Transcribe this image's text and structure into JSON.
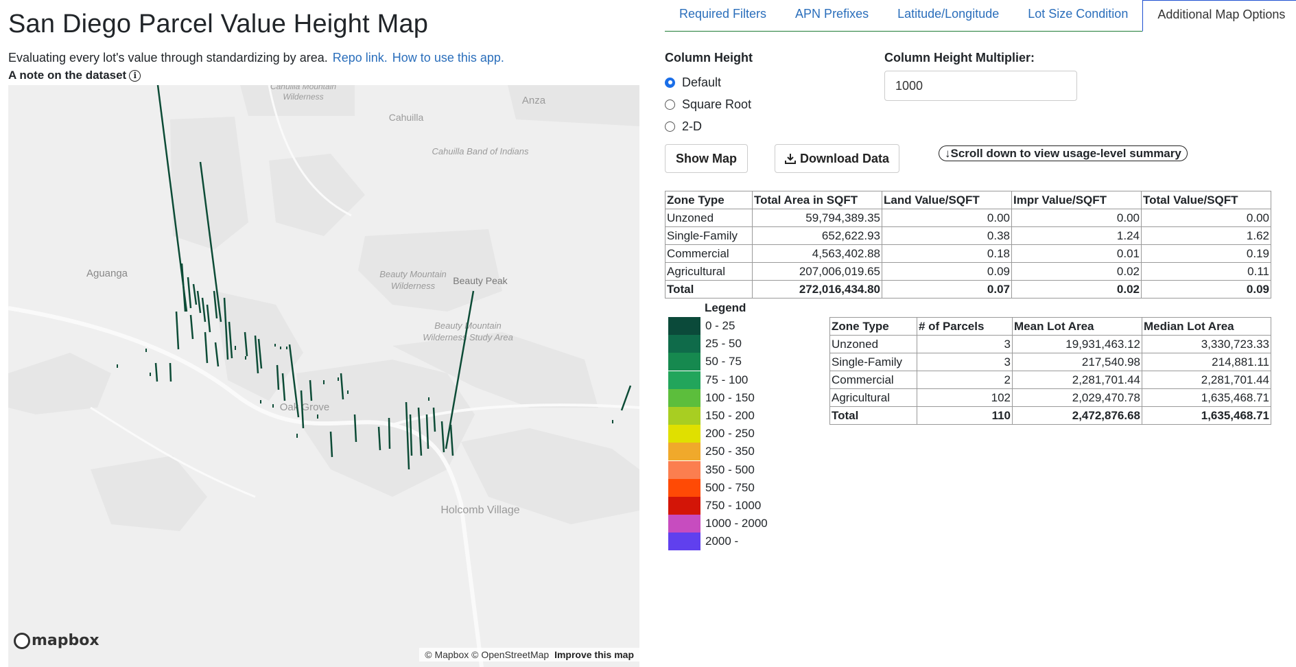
{
  "header": {
    "title": "San Diego Parcel Value Height Map",
    "subtitle": "Evaluating every lot's value through standardizing by area.",
    "repo_link": "Repo link.",
    "howto_link": "How to use this app.",
    "note": "A note on the dataset"
  },
  "tabs": [
    {
      "label": "Required Filters",
      "active": false
    },
    {
      "label": "APN Prefixes",
      "active": false
    },
    {
      "label": "Latitude/Longitude",
      "active": false
    },
    {
      "label": "Lot Size Condition",
      "active": false
    },
    {
      "label": "Additional Map Options",
      "active": true
    }
  ],
  "controls": {
    "column_height_title": "Column Height",
    "radios": [
      {
        "label": "Default",
        "checked": true
      },
      {
        "label": "Square Root",
        "checked": false
      },
      {
        "label": "2-D",
        "checked": false
      }
    ],
    "multiplier_title": "Column Height Multiplier:",
    "multiplier_value": "1000",
    "show_map": "Show Map",
    "download_data": "Download Data",
    "scroll_hint": "↓Scroll down to view usage-level summary"
  },
  "map": {
    "labels": [
      {
        "text": "Cahuilla Mountain",
        "style": "italic"
      },
      {
        "text": "Wilderness",
        "style": "italic"
      },
      {
        "text": "Anza",
        "style": "normal"
      },
      {
        "text": "Cahuilla",
        "style": "normal"
      },
      {
        "text": "Cahuilla Band of Indians",
        "style": "italic"
      },
      {
        "text": "Aguanga",
        "style": "normal"
      },
      {
        "text": "Beauty Mountain",
        "style": "italic"
      },
      {
        "text": "Wilderness",
        "style": "italic"
      },
      {
        "text": "Beauty Peak",
        "style": "normal"
      },
      {
        "text": "Beauty Mountain",
        "style": "italic"
      },
      {
        "text": "Wilderness Study Area",
        "style": "italic"
      },
      {
        "text": "Oak Grove",
        "style": "normal"
      },
      {
        "text": "Holcomb Village",
        "style": "normal"
      }
    ],
    "logo": "mapbox",
    "attribution": "© Mapbox © OpenStreetMap",
    "improve": "Improve this map",
    "column_color": "#0c4b36"
  },
  "value_table": {
    "headers": [
      "Zone Type",
      "Total Area in SQFT",
      "Land Value/SQFT",
      "Impr Value/SQFT",
      "Total Value/SQFT"
    ],
    "rows": [
      [
        "Unzoned",
        "59,794,389.35",
        "0.00",
        "0.00",
        "0.00"
      ],
      [
        "Single-Family",
        "652,622.93",
        "0.38",
        "1.24",
        "1.62"
      ],
      [
        "Commercial",
        "4,563,402.88",
        "0.18",
        "0.01",
        "0.19"
      ],
      [
        "Agricultural",
        "207,006,019.65",
        "0.09",
        "0.02",
        "0.11"
      ]
    ],
    "total": [
      "Total",
      "272,016,434.80",
      "0.07",
      "0.02",
      "0.09"
    ]
  },
  "parcel_table": {
    "headers": [
      "Zone Type",
      "# of Parcels",
      "Mean Lot Area",
      "Median Lot Area"
    ],
    "rows": [
      [
        "Unzoned",
        "3",
        "19,931,463.12",
        "3,330,723.33"
      ],
      [
        "Single-Family",
        "3",
        "217,540.98",
        "214,881.11"
      ],
      [
        "Commercial",
        "2",
        "2,281,701.44",
        "2,281,701.44"
      ],
      [
        "Agricultural",
        "102",
        "2,029,470.78",
        "1,635,468.71"
      ]
    ],
    "total": [
      "Total",
      "110",
      "2,472,876.68",
      "1,635,468.71"
    ]
  },
  "legend": {
    "title": "Legend",
    "items": [
      {
        "label": "0 - 25",
        "color": "#0b4a3a"
      },
      {
        "label": "25 - 50",
        "color": "#0f6b4a"
      },
      {
        "label": "50 - 75",
        "color": "#16894f"
      },
      {
        "label": "75 - 100",
        "color": "#22a55b"
      },
      {
        "label": "100 - 150",
        "color": "#5cbe3c"
      },
      {
        "label": "150 - 200",
        "color": "#a8ce22"
      },
      {
        "label": "200 - 250",
        "color": "#e0e000"
      },
      {
        "label": "250 - 350",
        "color": "#f0a92b"
      },
      {
        "label": "350 - 500",
        "color": "#fb7e4f"
      },
      {
        "label": "500 - 750",
        "color": "#ff4a05"
      },
      {
        "label": "750 - 1000",
        "color": "#d31507"
      },
      {
        "label": "1000 - 2000",
        "color": "#c74cbf"
      },
      {
        "label": "2000 -",
        "color": "#6040ee"
      }
    ]
  }
}
